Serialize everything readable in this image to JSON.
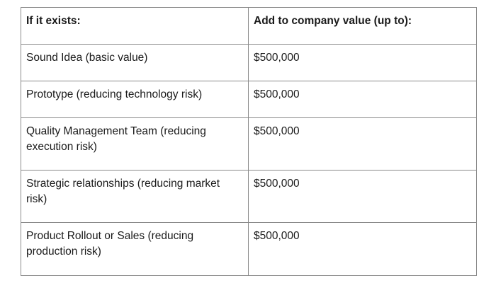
{
  "table": {
    "headers": [
      "If it exists:",
      "Add to company value (up to):"
    ],
    "rows": [
      [
        "Sound Idea (basic value)",
        "$500,000"
      ],
      [
        "Prototype (reducing technology risk)",
        "$500,000"
      ],
      [
        "Quality Management Team (reducing execution risk)",
        "$500,000"
      ],
      [
        "Strategic relationships (reducing market risk)",
        "$500,000"
      ],
      [
        "Product Rollout or Sales (reducing production risk)",
        "$500,000"
      ]
    ]
  }
}
